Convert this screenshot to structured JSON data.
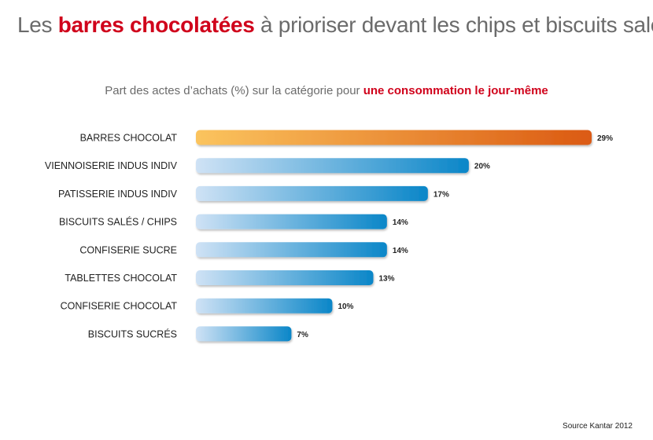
{
  "header": {
    "title_before": "Les ",
    "title_highlight": "barres chocolatées",
    "title_after": " à prioriser devant les chips et biscuits salés",
    "subtitle_before": "Part des actes d’achats (%) sur la catégorie pour ",
    "subtitle_highlight": "une consommation le jour-même"
  },
  "colors": {
    "accent": "#d0021b",
    "highlight_bar_start": "#fbc45e",
    "highlight_bar_end": "#db5a12",
    "bar_start": "#cfe2f5",
    "bar_end": "#0a86c8"
  },
  "chart_data": {
    "type": "bar",
    "orientation": "horizontal",
    "categories": [
      "BARRES CHOCOLAT",
      "VIENNOISERIE INDUS INDIV",
      "PATISSERIE INDUS INDIV",
      "BISCUITS SALÉS / CHIPS",
      "CONFISERIE SUCRE",
      "TABLETTES CHOCOLAT",
      "CONFISERIE CHOCOLAT",
      "BISCUITS SUCRÉS"
    ],
    "values": [
      29,
      20,
      17,
      14,
      14,
      13,
      10,
      7
    ],
    "value_labels": [
      "29%",
      "20%",
      "17%",
      "14%",
      "14%",
      "13%",
      "10%",
      "7%"
    ],
    "highlighted_index": 0,
    "xlim": [
      0,
      29
    ],
    "grid": false
  },
  "footer": {
    "source": "Source Kantar 2012"
  }
}
